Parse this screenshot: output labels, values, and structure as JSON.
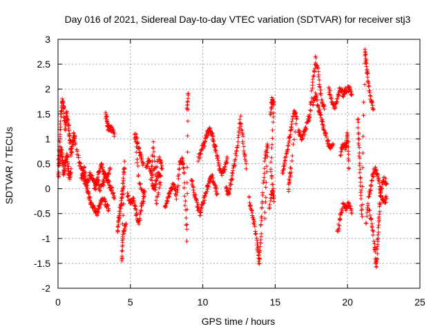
{
  "chart_data": {
    "type": "scatter",
    "title": "Day 016 of 2021, Sidereal Day-to-day VTEC variation (SDTVAR) for receiver stj3",
    "xlabel": "GPS time / hours",
    "ylabel": "SDTVAR / TECUs",
    "xlim": [
      0,
      25
    ],
    "ylim": [
      -2,
      3
    ],
    "xticks": [
      0,
      5,
      10,
      15,
      20,
      25
    ],
    "xtick_labels": [
      "0",
      "5",
      "10",
      "15",
      "20",
      "25"
    ],
    "yticks": [
      -2,
      -1.5,
      -1,
      -0.5,
      0,
      0.5,
      1,
      1.5,
      2,
      2.5,
      3
    ],
    "ytick_labels": [
      "-2",
      "-1.5",
      "-1",
      "-0.5",
      "0",
      "0.5",
      "1",
      "1.5",
      "2",
      "2.5",
      "3"
    ],
    "grid": true,
    "marker": "+",
    "marker_color": "#ff0000",
    "series": [
      {
        "name": "SDTVAR",
        "tracks": [
          [
            [
              0.0,
              0.4
            ],
            [
              0.1,
              0.9
            ],
            [
              0.2,
              1.5
            ],
            [
              0.3,
              1.8
            ],
            [
              0.4,
              1.6
            ],
            [
              0.5,
              1.2
            ],
            [
              0.6,
              1.5
            ],
            [
              0.7,
              1.3
            ],
            [
              0.8,
              1.0
            ],
            [
              0.9,
              0.7
            ],
            [
              1.0,
              0.9
            ],
            [
              1.1,
              1.1
            ],
            [
              1.2,
              0.9
            ]
          ],
          [
            [
              0.0,
              0.2
            ],
            [
              0.1,
              0.5
            ],
            [
              0.2,
              0.8
            ],
            [
              0.3,
              0.6
            ],
            [
              0.4,
              0.3
            ],
            [
              0.5,
              0.5
            ],
            [
              0.6,
              0.7
            ],
            [
              0.7,
              0.4
            ],
            [
              0.8,
              0.2
            ],
            [
              0.9,
              0.4
            ]
          ],
          [
            [
              1.3,
              0.8
            ],
            [
              1.5,
              0.5
            ],
            [
              1.7,
              0.3
            ],
            [
              1.9,
              0.1
            ],
            [
              2.1,
              -0.1
            ],
            [
              2.3,
              -0.3
            ],
            [
              2.5,
              -0.4
            ],
            [
              2.7,
              -0.5
            ],
            [
              2.9,
              -0.3
            ],
            [
              3.1,
              -0.2
            ],
            [
              3.3,
              -0.3
            ],
            [
              3.5,
              -0.4
            ]
          ],
          [
            [
              1.6,
              0.2
            ],
            [
              1.8,
              0.4
            ],
            [
              2.0,
              0.1
            ],
            [
              2.2,
              0.3
            ],
            [
              2.4,
              0.2
            ],
            [
              2.6,
              0.0
            ],
            [
              2.8,
              0.3
            ],
            [
              3.0,
              0.5
            ],
            [
              3.2,
              0.3
            ],
            [
              3.4,
              0.2
            ],
            [
              3.6,
              0.4
            ]
          ],
          [
            [
              2.5,
              0.0
            ],
            [
              2.7,
              0.2
            ],
            [
              2.9,
              0.0
            ],
            [
              3.1,
              0.1
            ],
            [
              3.3,
              0.3
            ],
            [
              3.5,
              0.1
            ],
            [
              3.7,
              0.0
            ],
            [
              3.9,
              -0.2
            ]
          ],
          [
            [
              3.3,
              1.5
            ],
            [
              3.4,
              1.3
            ],
            [
              3.5,
              1.2
            ],
            [
              3.7,
              1.2
            ],
            [
              3.9,
              1.1
            ]
          ],
          [
            [
              4.1,
              -0.9
            ],
            [
              4.2,
              -0.6
            ],
            [
              4.3,
              -0.4
            ],
            [
              4.4,
              -0.2
            ],
            [
              4.5,
              0.1
            ],
            [
              4.6,
              0.5
            ],
            [
              4.4,
              -1.5
            ],
            [
              4.5,
              -0.9
            ],
            [
              4.7,
              -0.7
            ]
          ],
          [
            [
              4.8,
              -0.1
            ],
            [
              5.0,
              -0.3
            ],
            [
              5.2,
              -0.2
            ],
            [
              5.4,
              -0.5
            ],
            [
              5.6,
              -0.7
            ],
            [
              5.8,
              -0.3
            ],
            [
              6.0,
              -0.1
            ],
            [
              5.6,
              0.1
            ],
            [
              5.3,
              1.1
            ],
            [
              5.5,
              0.9
            ],
            [
              5.7,
              0.7
            ],
            [
              5.9,
              0.5
            ]
          ],
          [
            [
              6.1,
              0.4
            ],
            [
              6.3,
              0.6
            ],
            [
              6.5,
              0.1
            ],
            [
              6.7,
              0.0
            ],
            [
              6.9,
              0.3
            ],
            [
              7.1,
              0.2
            ],
            [
              6.8,
              -0.3
            ],
            [
              6.6,
              0.9
            ],
            [
              6.4,
              0.2
            ],
            [
              7.0,
              0.6
            ],
            [
              7.2,
              0.4
            ]
          ],
          [
            [
              7.4,
              -0.4
            ],
            [
              7.6,
              -0.2
            ],
            [
              7.8,
              0.0
            ],
            [
              8.0,
              0.1
            ],
            [
              8.2,
              -0.2
            ],
            [
              8.4,
              0.5
            ],
            [
              8.6,
              0.6
            ],
            [
              8.7,
              0.3
            ],
            [
              8.9,
              -1.0
            ],
            [
              9.0,
              1.9
            ],
            [
              8.9,
              1.6
            ]
          ],
          [
            [
              9.2,
              0.2
            ],
            [
              9.4,
              -0.1
            ],
            [
              9.6,
              -0.3
            ],
            [
              9.8,
              -0.5
            ],
            [
              10.0,
              -0.3
            ],
            [
              10.2,
              -0.1
            ],
            [
              10.4,
              0.1
            ],
            [
              10.6,
              0.3
            ],
            [
              10.8,
              0.1
            ],
            [
              11.0,
              -0.1
            ]
          ],
          [
            [
              9.7,
              0.6
            ],
            [
              9.9,
              0.8
            ],
            [
              10.1,
              0.9
            ],
            [
              10.3,
              1.1
            ],
            [
              10.5,
              1.2
            ],
            [
              10.7,
              1.0
            ],
            [
              10.9,
              0.8
            ],
            [
              11.1,
              0.5
            ],
            [
              11.3,
              0.3
            ],
            [
              11.5,
              0.4
            ],
            [
              11.7,
              0.6
            ]
          ],
          [
            [
              11.6,
              0.0
            ],
            [
              11.8,
              -0.1
            ],
            [
              12.0,
              0.2
            ],
            [
              12.2,
              0.5
            ],
            [
              12.4,
              0.9
            ],
            [
              12.6,
              1.4
            ],
            [
              12.8,
              0.9
            ],
            [
              13.0,
              0.4
            ]
          ],
          [
            [
              13.2,
              -0.2
            ],
            [
              13.4,
              -0.5
            ],
            [
              13.6,
              -0.8
            ],
            [
              13.8,
              -1.2
            ],
            [
              13.9,
              -1.5
            ],
            [
              14.0,
              -1.0
            ],
            [
              14.1,
              -0.3
            ],
            [
              14.3,
              0.6
            ],
            [
              14.5,
              0.9
            ],
            [
              14.3,
              -0.6
            ]
          ],
          [
            [
              14.7,
              1.5
            ],
            [
              14.8,
              1.8
            ],
            [
              14.9,
              1.7
            ],
            [
              14.7,
              0.4
            ],
            [
              14.9,
              -0.2
            ],
            [
              14.8,
              0.0
            ],
            [
              14.6,
              -0.4
            ]
          ],
          [
            [
              15.5,
              0.3
            ],
            [
              15.7,
              0.6
            ],
            [
              15.9,
              0.9
            ],
            [
              16.1,
              1.2
            ],
            [
              16.3,
              1.6
            ],
            [
              16.5,
              1.4
            ],
            [
              15.9,
              0.0
            ],
            [
              16.1,
              0.4
            ]
          ],
          [
            [
              16.6,
              1.2
            ],
            [
              16.8,
              1.0
            ],
            [
              17.0,
              1.1
            ],
            [
              17.2,
              1.3
            ],
            [
              17.4,
              1.5
            ],
            [
              17.6,
              2.1
            ],
            [
              17.8,
              2.6
            ],
            [
              18.0,
              2.3
            ],
            [
              18.2,
              1.8
            ],
            [
              18.4,
              1.6
            ]
          ],
          [
            [
              17.6,
              1.7
            ],
            [
              17.8,
              1.9
            ],
            [
              18.0,
              1.6
            ],
            [
              18.2,
              1.4
            ],
            [
              18.4,
              1.2
            ],
            [
              18.6,
              1.0
            ],
            [
              18.8,
              0.8
            ],
            [
              19.0,
              0.9
            ]
          ],
          [
            [
              18.7,
              2.0
            ],
            [
              18.9,
              1.8
            ],
            [
              19.1,
              1.6
            ],
            [
              19.3,
              1.8
            ],
            [
              19.5,
              2.0
            ],
            [
              19.7,
              1.9
            ],
            [
              19.9,
              2.0
            ],
            [
              20.1,
              2.0
            ],
            [
              20.3,
              1.9
            ]
          ],
          [
            [
              19.3,
              -0.9
            ],
            [
              19.5,
              -0.6
            ],
            [
              19.7,
              -0.3
            ],
            [
              19.9,
              -0.4
            ],
            [
              20.1,
              -0.3
            ],
            [
              20.3,
              -0.5
            ]
          ],
          [
            [
              19.5,
              0.7
            ],
            [
              19.7,
              0.9
            ],
            [
              19.9,
              0.8
            ],
            [
              20.0,
              1.1
            ],
            [
              20.1,
              0.4
            ]
          ],
          [
            [
              20.7,
              1.4
            ],
            [
              20.8,
              0.8
            ],
            [
              20.9,
              0.1
            ],
            [
              21.0,
              -0.6
            ],
            [
              21.2,
              2.8
            ],
            [
              21.3,
              2.5
            ],
            [
              21.4,
              2.2
            ],
            [
              21.6,
              1.8
            ],
            [
              21.8,
              1.6
            ]
          ],
          [
            [
              21.5,
              -0.4
            ],
            [
              21.7,
              -0.8
            ],
            [
              21.9,
              -1.2
            ],
            [
              22.0,
              -1.6
            ],
            [
              22.1,
              -1.0
            ],
            [
              22.2,
              -0.5
            ],
            [
              22.3,
              0.0
            ],
            [
              22.5,
              0.2
            ],
            [
              22.7,
              0.1
            ]
          ],
          [
            [
              21.3,
              -0.7
            ],
            [
              21.5,
              -0.1
            ],
            [
              21.7,
              0.2
            ],
            [
              21.9,
              0.4
            ],
            [
              22.1,
              0.3
            ],
            [
              22.3,
              -0.1
            ],
            [
              22.5,
              -0.3
            ],
            [
              22.7,
              -0.2
            ]
          ]
        ]
      }
    ]
  }
}
